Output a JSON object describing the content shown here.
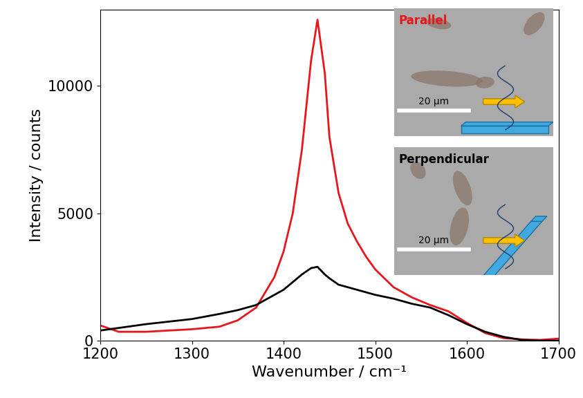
{
  "chart_data": {
    "type": "line",
    "x_label": "Wavenumber / cm⁻¹",
    "y_label": "Intensity / counts",
    "x": [
      1200,
      1220,
      1250,
      1300,
      1330,
      1350,
      1370,
      1390,
      1400,
      1410,
      1420,
      1430,
      1437,
      1445,
      1450,
      1460,
      1470,
      1480,
      1490,
      1500,
      1520,
      1540,
      1560,
      1580,
      1600,
      1620,
      1640,
      1660,
      1680,
      1700
    ],
    "series": [
      {
        "name": "Parallel",
        "color": "#e8161b",
        "scale_bar": "20 μm",
        "values": [
          600,
          350,
          350,
          450,
          550,
          800,
          1300,
          2500,
          3500,
          5000,
          7500,
          11000,
          12600,
          10500,
          8000,
          5800,
          4600,
          3900,
          3300,
          2800,
          2100,
          1700,
          1400,
          1150,
          700,
          300,
          100,
          50,
          30,
          80
        ]
      },
      {
        "name": "Perpendicular",
        "color": "#000000",
        "scale_bar": "20 μm",
        "values": [
          400,
          500,
          650,
          850,
          1050,
          1200,
          1400,
          1800,
          2000,
          2300,
          2600,
          2850,
          2900,
          2600,
          2450,
          2200,
          2100,
          2000,
          1900,
          1800,
          1650,
          1450,
          1300,
          1000,
          650,
          350,
          150,
          30,
          0,
          0
        ]
      }
    ],
    "xlim": [
      1200,
      1700
    ],
    "xticks": [
      1200,
      1300,
      1400,
      1500,
      1600,
      1700
    ],
    "ylim": [
      0,
      13000
    ],
    "yticks": [
      0,
      5000,
      10000
    ],
    "grid": false
  }
}
